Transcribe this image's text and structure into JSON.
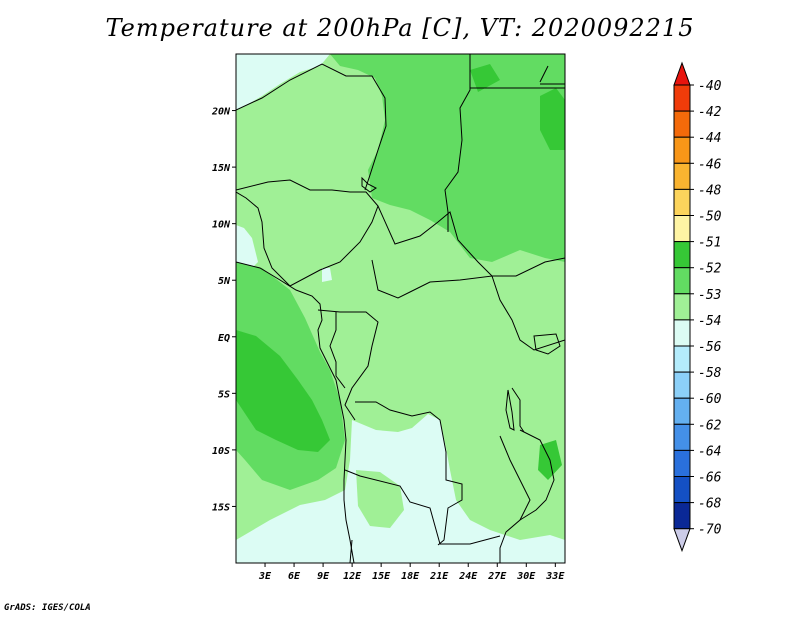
{
  "title": "Temperature at 200hPa [C], VT: 2020092215",
  "credit": "GrADS: IGES/COLA",
  "map": {
    "lon_range": [
      0,
      34
    ],
    "lat_range": [
      -20,
      25
    ],
    "lon_ticks": [
      {
        "v": 3,
        "label": "3E"
      },
      {
        "v": 6,
        "label": "6E"
      },
      {
        "v": 9,
        "label": "9E"
      },
      {
        "v": 12,
        "label": "12E"
      },
      {
        "v": 15,
        "label": "15E"
      },
      {
        "v": 18,
        "label": "18E"
      },
      {
        "v": 21,
        "label": "21E"
      },
      {
        "v": 24,
        "label": "24E"
      },
      {
        "v": 27,
        "label": "27E"
      },
      {
        "v": 30,
        "label": "30E"
      },
      {
        "v": 33,
        "label": "33E"
      }
    ],
    "lat_ticks": [
      {
        "v": 20,
        "label": "20N"
      },
      {
        "v": 15,
        "label": "15N"
      },
      {
        "v": 10,
        "label": "10N"
      },
      {
        "v": 5,
        "label": "5N"
      },
      {
        "v": 0,
        "label": "EQ"
      },
      {
        "v": -5,
        "label": "5S"
      },
      {
        "v": -10,
        "label": "10S"
      },
      {
        "v": -15,
        "label": "15S"
      }
    ]
  },
  "colorbar": {
    "levels": [
      "-40",
      "-42",
      "-44",
      "-46",
      "-48",
      "-50",
      "-51",
      "-52",
      "-53",
      "-54",
      "-56",
      "-58",
      "-60",
      "-62",
      "-64",
      "-66",
      "-68",
      "-70"
    ],
    "colors": [
      "#e8140e",
      "#f03c0a",
      "#f46a0a",
      "#f89618",
      "#fab430",
      "#fcd45c",
      "#fef4a4",
      "#36c836",
      "#62dc62",
      "#a0f096",
      "#dcfcf4",
      "#b4ecfc",
      "#8cd0f8",
      "#64b0f0",
      "#4490e8",
      "#2a70dc",
      "#1450c4",
      "#0a2896",
      "#cccce8"
    ]
  },
  "field_colors": {
    "lt": "#a0f096",
    "md": "#62dc62",
    "dk": "#36c836",
    "cy": "#dcfcf4"
  }
}
